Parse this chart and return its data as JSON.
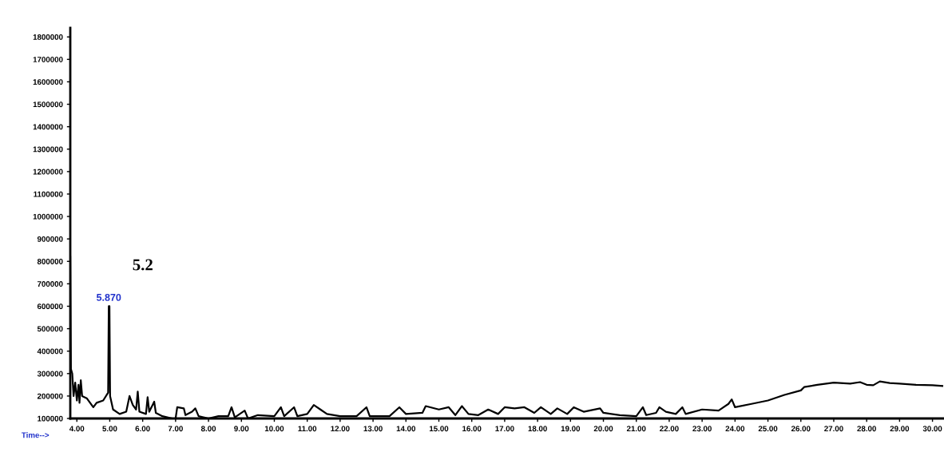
{
  "chart_data": {
    "type": "line",
    "xlabel": "Time-->",
    "annotations": [
      {
        "text": "5.870",
        "x": 4.97,
        "y": 600000
      },
      "5.2"
    ],
    "xlim": [
      3.8,
      30.35
    ],
    "ylim": [
      100000,
      1840000
    ],
    "xticks": [
      {
        "value": 4,
        "label": "4.00"
      },
      {
        "value": 5,
        "label": "5.00"
      },
      {
        "value": 6,
        "label": "6.00"
      },
      {
        "value": 7,
        "label": "7.00"
      },
      {
        "value": 8,
        "label": "8.00"
      },
      {
        "value": 9,
        "label": "9.00"
      },
      {
        "value": 10,
        "label": "10.00"
      },
      {
        "value": 11,
        "label": "11.00"
      },
      {
        "value": 12,
        "label": "12.00"
      },
      {
        "value": 13,
        "label": "13.00"
      },
      {
        "value": 14,
        "label": "14.00"
      },
      {
        "value": 15,
        "label": "15.00"
      },
      {
        "value": 16,
        "label": "16.00"
      },
      {
        "value": 17,
        "label": "17.00"
      },
      {
        "value": 18,
        "label": "18.00"
      },
      {
        "value": 19,
        "label": "19.00"
      },
      {
        "value": 20,
        "label": "20.00"
      },
      {
        "value": 21,
        "label": "21.00"
      },
      {
        "value": 22,
        "label": "22.00"
      },
      {
        "value": 23,
        "label": "23.00"
      },
      {
        "value": 24,
        "label": "24.00"
      },
      {
        "value": 25,
        "label": "25.00"
      },
      {
        "value": 26,
        "label": "26.00"
      },
      {
        "value": 27,
        "label": "27.00"
      },
      {
        "value": 28,
        "label": "28.00"
      },
      {
        "value": 29,
        "label": "29.00"
      },
      {
        "value": 30,
        "label": "30.00"
      }
    ],
    "yticks": [
      100000,
      200000,
      300000,
      400000,
      500000,
      600000,
      700000,
      800000,
      900000,
      1000000,
      1100000,
      1200000,
      1300000,
      1400000,
      1500000,
      1600000,
      1700000,
      1800000
    ],
    "grid": false,
    "legend": false,
    "series": [
      {
        "color": "#000000",
        "x": [
          3.8,
          3.82,
          3.86,
          3.9,
          3.95,
          4.0,
          4.05,
          4.08,
          4.12,
          4.16,
          4.3,
          4.5,
          4.6,
          4.8,
          4.95,
          4.97,
          4.99,
          5.01,
          5.1,
          5.3,
          5.5,
          5.6,
          5.7,
          5.8,
          5.85,
          5.9,
          6.1,
          6.15,
          6.2,
          6.3,
          6.35,
          6.4,
          6.6,
          6.9,
          7.0,
          7.05,
          7.25,
          7.3,
          7.5,
          7.6,
          7.7,
          8.0,
          8.3,
          8.6,
          8.7,
          8.8,
          9.1,
          9.2,
          9.5,
          10.0,
          10.2,
          10.3,
          10.6,
          10.7,
          11.0,
          11.2,
          11.4,
          11.6,
          12.0,
          12.5,
          12.8,
          12.9,
          13.5,
          13.8,
          14.0,
          14.5,
          14.6,
          15.0,
          15.3,
          15.5,
          15.7,
          15.9,
          16.2,
          16.5,
          16.8,
          17.0,
          17.3,
          17.6,
          17.9,
          18.1,
          18.4,
          18.6,
          18.9,
          19.1,
          19.4,
          19.9,
          20.0,
          20.5,
          21.0,
          21.2,
          21.3,
          21.6,
          21.7,
          21.9,
          22.2,
          22.4,
          22.5,
          23.0,
          23.5,
          23.8,
          23.9,
          24.0,
          24.5,
          25.0,
          25.5,
          26.0,
          26.1,
          26.5,
          27.0,
          27.5,
          27.8,
          28.0,
          28.2,
          28.4,
          28.7,
          29.0,
          29.5,
          30.0,
          30.3
        ],
        "values": [
          820000,
          320000,
          300000,
          200000,
          260000,
          180000,
          250000,
          170000,
          270000,
          200000,
          190000,
          150000,
          170000,
          180000,
          215000,
          600000,
          600000,
          200000,
          140000,
          120000,
          130000,
          200000,
          160000,
          140000,
          220000,
          130000,
          120000,
          195000,
          130000,
          160000,
          175000,
          125000,
          110000,
          100000,
          100000,
          150000,
          145000,
          115000,
          130000,
          145000,
          110000,
          100000,
          110000,
          110000,
          150000,
          105000,
          135000,
          100000,
          115000,
          110000,
          150000,
          110000,
          150000,
          110000,
          120000,
          160000,
          140000,
          120000,
          110000,
          110000,
          150000,
          110000,
          110000,
          150000,
          120000,
          125000,
          155000,
          140000,
          150000,
          115000,
          155000,
          120000,
          115000,
          140000,
          120000,
          150000,
          145000,
          150000,
          125000,
          150000,
          120000,
          145000,
          120000,
          150000,
          130000,
          145000,
          125000,
          115000,
          110000,
          150000,
          115000,
          125000,
          150000,
          130000,
          120000,
          150000,
          120000,
          140000,
          135000,
          165000,
          185000,
          150000,
          165000,
          180000,
          205000,
          225000,
          240000,
          250000,
          260000,
          255000,
          262000,
          250000,
          248000,
          265000,
          258000,
          255000,
          250000,
          248000,
          245000
        ]
      }
    ]
  }
}
